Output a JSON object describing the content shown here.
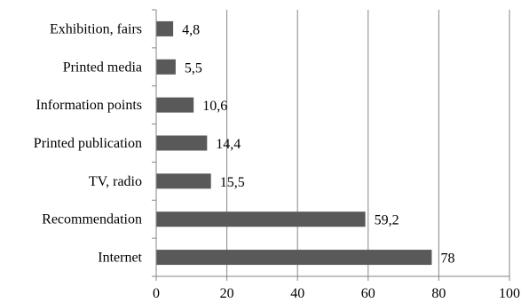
{
  "chart_data": {
    "type": "bar",
    "orientation": "horizontal",
    "title": "",
    "xlabel": "",
    "ylabel": "",
    "categories": [
      "Internet",
      "Recommendation",
      "TV, radio",
      "Printed publication",
      "Information points",
      "Printed media",
      "Exhibition, fairs"
    ],
    "values": [
      78,
      59.2,
      15.5,
      14.4,
      10.6,
      5.5,
      4.8
    ],
    "value_labels": [
      "78",
      "59,2",
      "15,5",
      "14,4",
      "10,6",
      "5,5",
      "4,8"
    ],
    "xlim": [
      0,
      100
    ],
    "xticks": [
      0,
      20,
      40,
      60,
      80,
      100
    ],
    "xtick_labels": [
      "0",
      "20",
      "40",
      "60",
      "80",
      "100"
    ],
    "grid": "vertical",
    "legend": "none",
    "bar_color": "#595959",
    "grid_color": "#868686"
  }
}
